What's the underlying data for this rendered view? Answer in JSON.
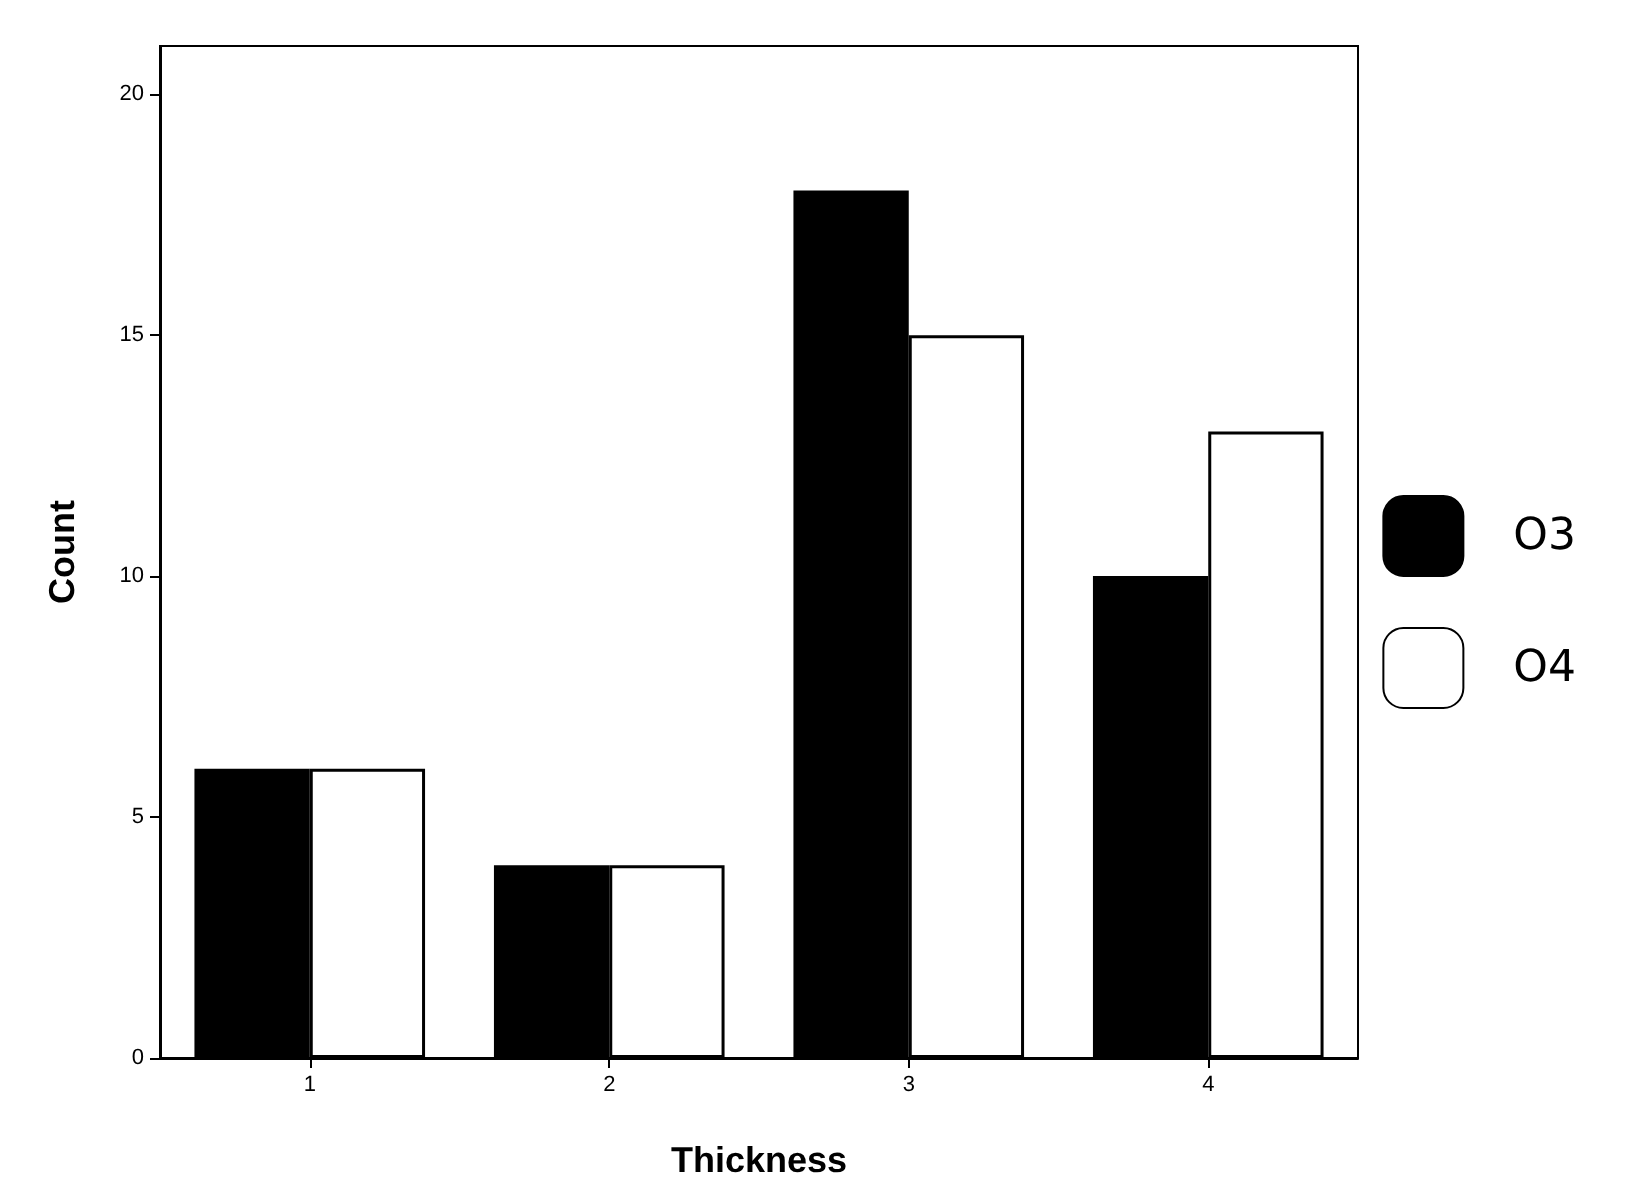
{
  "chart_data": {
    "type": "bar",
    "xlabel": "Thickness",
    "ylabel": "Count",
    "categories": [
      "1",
      "2",
      "3",
      "4"
    ],
    "series": [
      {
        "name": "O3",
        "color": "#000000",
        "values": [
          6,
          4,
          18,
          10
        ]
      },
      {
        "name": "O4",
        "color": "#ffffff",
        "values": [
          6,
          4,
          15,
          13
        ]
      }
    ],
    "ylim": [
      0,
      21
    ],
    "yticks": [
      0,
      5,
      10,
      15,
      20
    ],
    "grid": false,
    "legend": "right"
  }
}
